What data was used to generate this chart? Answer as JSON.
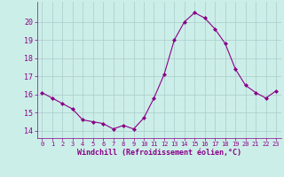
{
  "x": [
    0,
    1,
    2,
    3,
    4,
    5,
    6,
    7,
    8,
    9,
    10,
    11,
    12,
    13,
    14,
    15,
    16,
    17,
    18,
    19,
    20,
    21,
    22,
    23
  ],
  "y": [
    16.1,
    15.8,
    15.5,
    15.2,
    14.6,
    14.5,
    14.4,
    14.1,
    14.3,
    14.1,
    14.7,
    15.8,
    17.1,
    19.0,
    20.0,
    20.5,
    20.2,
    19.6,
    18.8,
    17.4,
    16.5,
    16.1,
    15.8,
    16.2
  ],
  "line_color": "#880088",
  "marker": "D",
  "marker_size": 2,
  "bg_color": "#cceee8",
  "grid_color": "#aacccc",
  "xlabel": "Windchill (Refroidissement éolien,°C)",
  "xlabel_color": "#880088",
  "tick_color": "#880088",
  "ylim": [
    13.6,
    21.1
  ],
  "xlim": [
    -0.5,
    23.5
  ],
  "yticks": [
    14,
    15,
    16,
    17,
    18,
    19,
    20
  ],
  "xticks": [
    0,
    1,
    2,
    3,
    4,
    5,
    6,
    7,
    8,
    9,
    10,
    11,
    12,
    13,
    14,
    15,
    16,
    17,
    18,
    19,
    20,
    21,
    22,
    23
  ],
  "spine_color": "#888888"
}
